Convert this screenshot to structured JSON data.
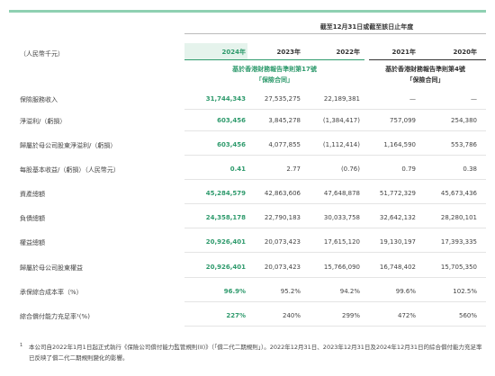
{
  "header": {
    "period": "截至12月31日或截至該日止年度",
    "unit": "（人民幣千元）",
    "years": [
      "2024年",
      "2023年",
      "2022年",
      "2021年",
      "2020年"
    ],
    "standards": [
      {
        "line1": "基於香港財務報告準則第17號",
        "line2": "「保險合同」"
      },
      {
        "line1": "基於香港財務報告準則第4號",
        "line2": "「保險合同」"
      }
    ]
  },
  "table": {
    "rows": [
      {
        "label": "保險服務收入",
        "values": [
          "31,744,343",
          "27,535,275",
          "22,189,381",
          "—",
          "—"
        ]
      },
      {
        "label": "淨溢利/（虧損）",
        "values": [
          "603,456",
          "3,845,278",
          "(1,384,417)",
          "757,099",
          "254,380"
        ]
      },
      {
        "label": "歸屬於母公司股東淨溢利/（虧損）",
        "values": [
          "603,456",
          "4,077,855",
          "(1,112,414)",
          "1,164,590",
          "553,786"
        ]
      },
      {
        "label": "每股基本收益/（虧損）（人民幣元）",
        "values": [
          "0.41",
          "2.77",
          "(0.76)",
          "0.79",
          "0.38"
        ]
      },
      {
        "label": "資產總額",
        "values": [
          "45,284,579",
          "42,863,606",
          "47,648,878",
          "51,772,329",
          "45,673,436"
        ]
      },
      {
        "label": "負債總額",
        "values": [
          "24,358,178",
          "22,790,183",
          "30,033,758",
          "32,642,132",
          "28,280,101"
        ]
      },
      {
        "label": "權益總額",
        "values": [
          "20,926,401",
          "20,073,423",
          "17,615,120",
          "19,130,197",
          "17,393,335"
        ]
      },
      {
        "label": "歸屬於母公司股東權益",
        "values": [
          "20,926,401",
          "20,073,423",
          "15,766,090",
          "16,748,402",
          "15,705,350"
        ]
      },
      {
        "label": "承保綜合成本率（%）",
        "values": [
          "96.9%",
          "95.2%",
          "94.2%",
          "99.6%",
          "102.5%"
        ]
      },
      {
        "label": "綜合償付能力充足率¹(%)",
        "values": [
          "227%",
          "240%",
          "299%",
          "472%",
          "560%"
        ]
      }
    ]
  },
  "footnote": {
    "marker": "1",
    "text": "本公司自2022年1月1日起正式執行《保險公司償付能力監管規則(II)》（「償二代二期規則」）。2022年12月31日、2023年12月31日及2024年12月31日的綜合償付能力充足率已反映了償二代二期規則變化的影響。"
  }
}
